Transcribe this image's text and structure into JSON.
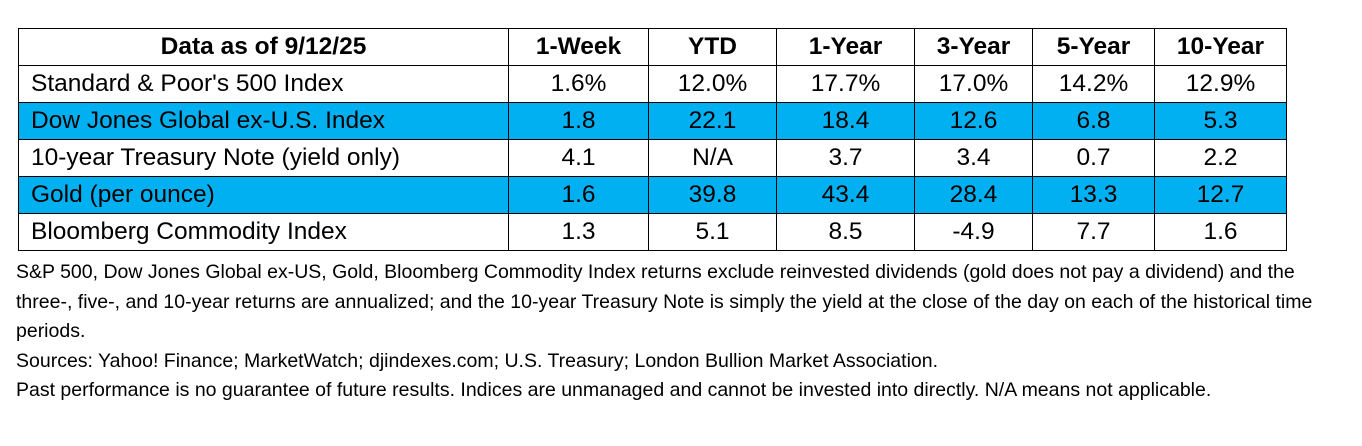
{
  "table": {
    "headers": [
      "Data as of 9/12/25",
      "1-Week",
      "YTD",
      "1-Year",
      "3-Year",
      "5-Year",
      "10-Year"
    ],
    "rows": [
      {
        "label": "Standard & Poor's 500 Index",
        "values": [
          "1.6%",
          "12.0%",
          "17.7%",
          "17.0%",
          "14.2%",
          "12.9%"
        ],
        "highlight": false
      },
      {
        "label": "Dow Jones Global ex-U.S. Index",
        "values": [
          "1.8",
          "22.1",
          "18.4",
          "12.6",
          "6.8",
          "5.3"
        ],
        "highlight": true
      },
      {
        "label": "10-year Treasury Note (yield only)",
        "values": [
          "4.1",
          "N/A",
          "3.7",
          "3.4",
          "0.7",
          "2.2"
        ],
        "highlight": false
      },
      {
        "label": "Gold (per ounce)",
        "values": [
          "1.6",
          "39.8",
          "43.4",
          "28.4",
          "13.3",
          "12.7"
        ],
        "highlight": true
      },
      {
        "label": "Bloomberg Commodity Index",
        "values": [
          "1.3",
          "5.1",
          "8.5",
          "-4.9",
          "7.7",
          "1.6"
        ],
        "highlight": false
      }
    ],
    "highlight_color": "#00b0f0"
  },
  "notes": {
    "methodology": "S&P 500, Dow Jones Global ex-US, Gold, Bloomberg Commodity Index returns exclude reinvested dividends (gold does not pay a dividend) and the three-, five-, and 10-year returns are annualized; and the 10-year Treasury Note is simply the yield at the close of the day on each of the historical time periods.",
    "sources": "Sources: Yahoo! Finance; MarketWatch; djindexes.com; U.S. Treasury; London Bullion Market Association.",
    "disclaimer": "Past performance is no guarantee of future results. Indices are unmanaged and cannot be invested into directly. N/A means not applicable."
  }
}
